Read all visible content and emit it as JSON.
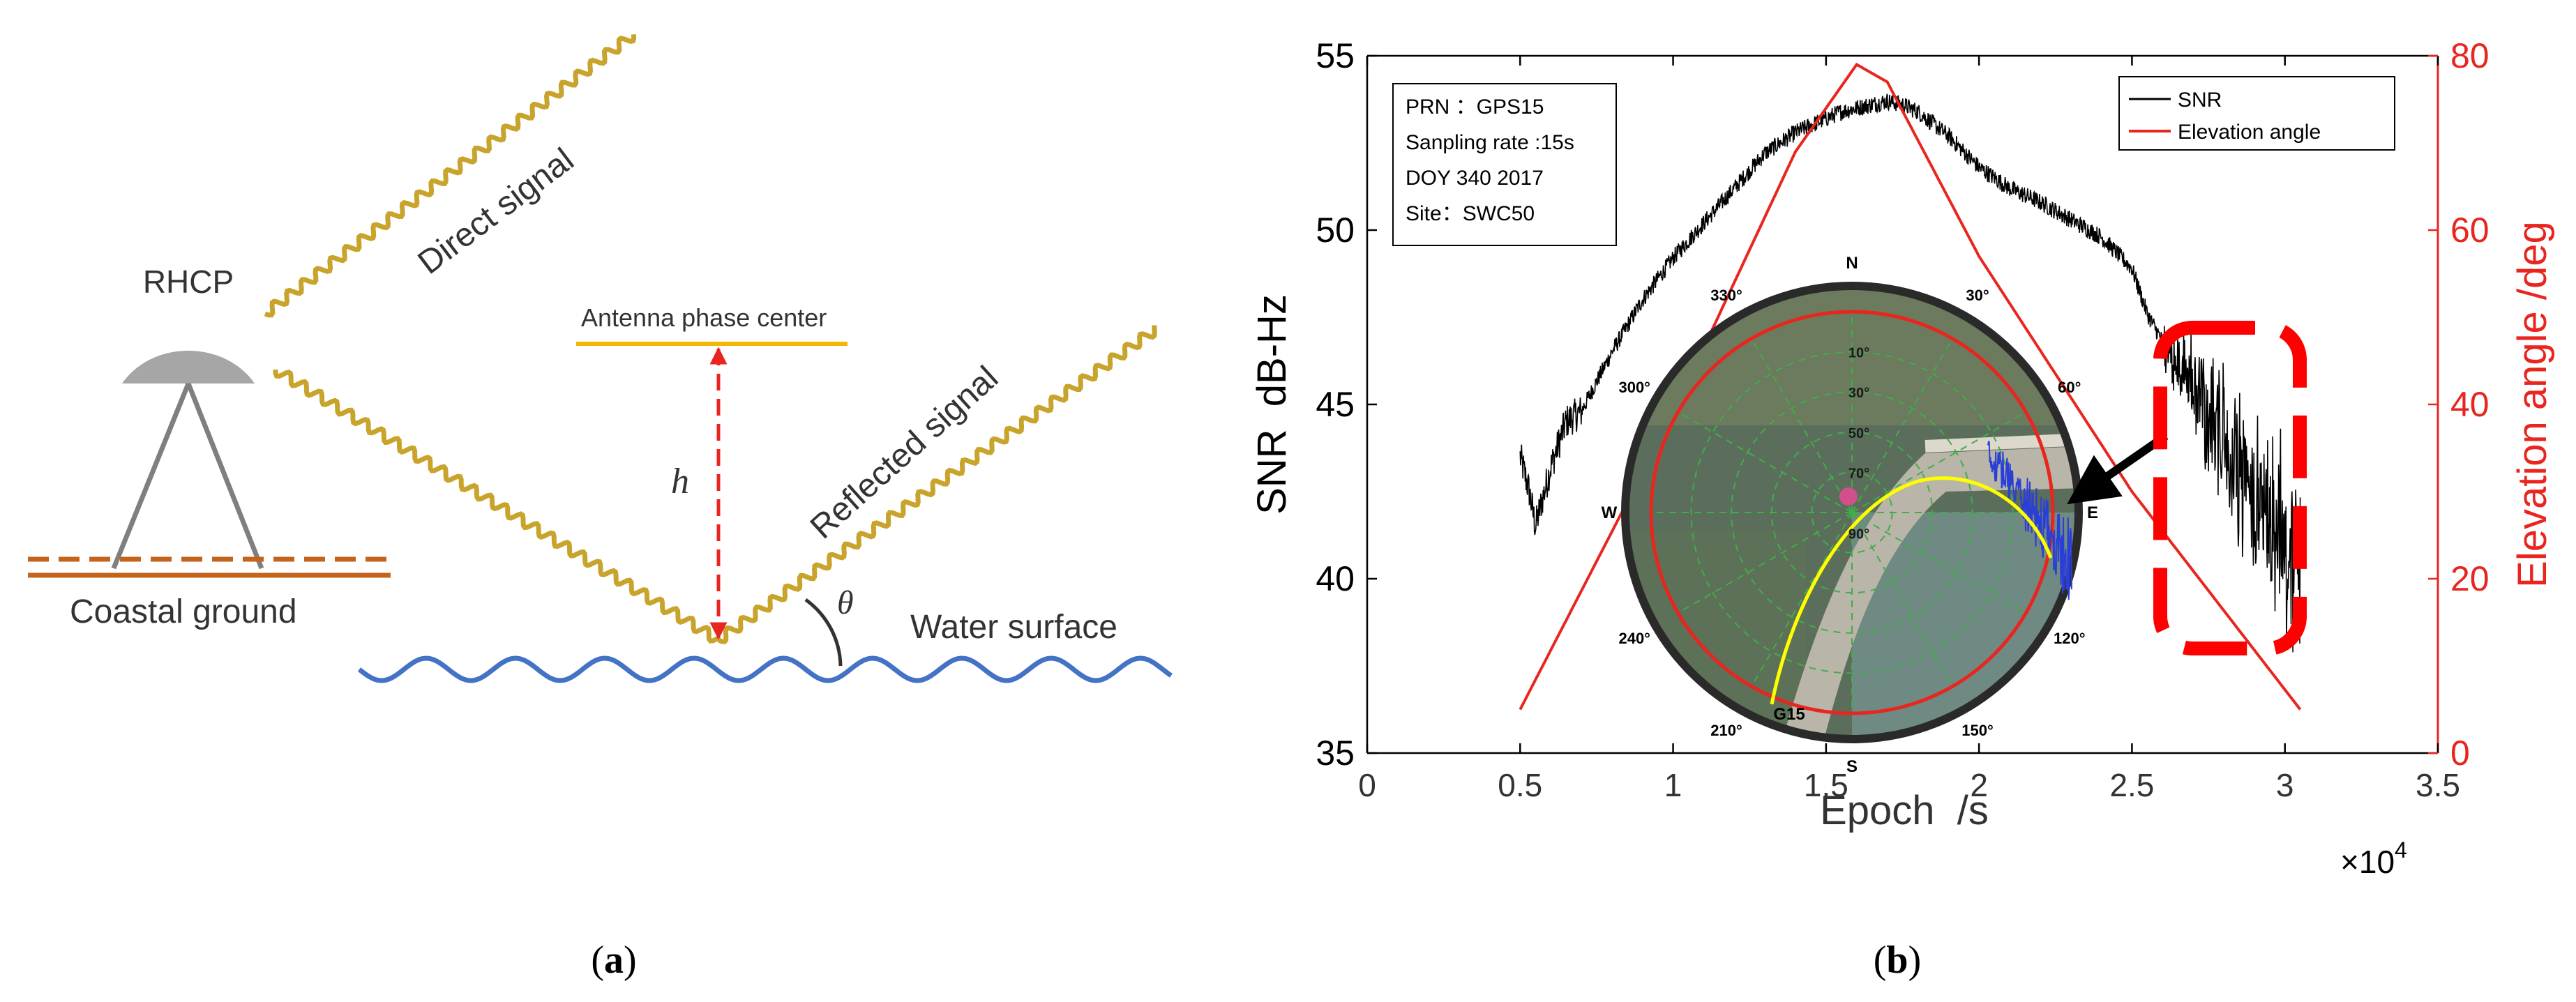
{
  "panel_a": {
    "label": "(a)",
    "label_letter": "a",
    "antenna_label": "RHCP",
    "ground_label": "Coastal ground",
    "direct_label": "Direct signal",
    "apc_label": "Antenna phase center",
    "height_label": "h",
    "reflected_label": "Reflected signal",
    "angle_label": "θ",
    "water_label": "Water surface",
    "colors": {
      "signal": "#c9a42c",
      "ground": "#c4631c",
      "water": "#4472c4",
      "apc": "#f2b705",
      "h_arrow": "#e8261f",
      "antenna": "#a6a6a6"
    }
  },
  "panel_b": {
    "label": "(b)",
    "label_letter": "b",
    "exponent_label": "×10",
    "exponent_power": "4",
    "info_box": [
      "PRN ：GPS15",
      "Sanpling rate :15s",
      "DOY 340 2017",
      "Site：SWC50"
    ],
    "skyplot": {
      "N": "N",
      "S": "S",
      "E": "E",
      "W": "W",
      "azimuths": [
        "30°",
        "60°",
        "120°",
        "150°",
        "210°",
        "240°",
        "300°",
        "330°"
      ],
      "elevations": [
        "10°",
        "30°",
        "50°",
        "70°",
        "90°"
      ],
      "sat_label": "G15"
    },
    "colors": {
      "snr": "#000000",
      "elev": "#e8261f",
      "highlight": "#ff0000",
      "skytrack": "#ffff00",
      "skysnr": "#2b3fd6"
    }
  },
  "chart_data": {
    "type": "line",
    "title": "",
    "xlabel": "Epoch  /s",
    "ylabel": "SNR  dB-Hz",
    "y2label": "Elevation angle /deg",
    "xlim": [
      0,
      35000
    ],
    "ylim": [
      35,
      55
    ],
    "y2lim": [
      0,
      80
    ],
    "xticks": [
      "0",
      "0.5",
      "1",
      "1.5",
      "2",
      "2.5",
      "3",
      "3.5"
    ],
    "yticks": [
      "35",
      "40",
      "45",
      "50",
      "55"
    ],
    "y2ticks": [
      "0",
      "20",
      "40",
      "60",
      "80"
    ],
    "grid": false,
    "legend": "top-right",
    "series": [
      {
        "name": "SNR",
        "axis": "left",
        "color": "#000000",
        "x": [
          5000,
          5300,
          5500,
          6000,
          6500,
          7000,
          8000,
          9000,
          10000,
          11000,
          12000,
          13000,
          14000,
          15000,
          15500,
          16000,
          16500,
          17000,
          17500,
          18000,
          19000,
          20000,
          21000,
          22000,
          23000,
          24000,
          25000,
          25500,
          26000,
          26500,
          27000,
          27500,
          28000,
          28500,
          29000,
          29500,
          30000,
          30500
        ],
        "values": [
          43.5,
          42.5,
          41.5,
          43.2,
          44.5,
          44.8,
          46.5,
          48.0,
          49.2,
          50.2,
          51.2,
          52.2,
          52.8,
          53.2,
          53.4,
          53.5,
          53.6,
          53.7,
          53.6,
          53.4,
          52.7,
          51.8,
          51.2,
          50.8,
          50.3,
          49.8,
          48.9,
          47.6,
          46.8,
          46.2,
          45.5,
          44.6,
          44.0,
          43.0,
          42.3,
          41.5,
          40.8,
          40.5
        ]
      },
      {
        "name": "Elevation angle",
        "axis": "right",
        "color": "#e8261f",
        "x": [
          5000,
          10000,
          14000,
          16000,
          17000,
          20000,
          25000,
          30500
        ],
        "values": [
          5,
          39,
          69,
          79,
          77,
          57,
          30,
          5
        ]
      }
    ]
  }
}
